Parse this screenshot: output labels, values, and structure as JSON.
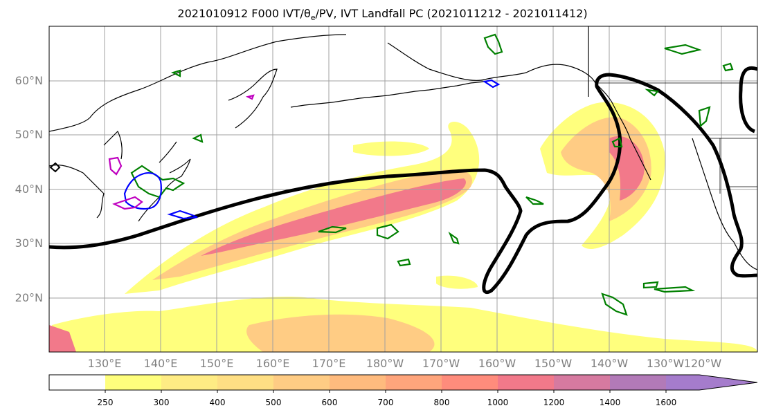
{
  "title": {
    "prefix": "2021010912 F000 IVT/",
    "theta": "θ",
    "sub_e": "e",
    "suffix": "/PV, IVT Landfall PC (2021011212 - 2021011412)"
  },
  "lat_labels": [
    "60°N",
    "50°N",
    "40°N",
    "30°N",
    "20°N"
  ],
  "lon_labels": [
    "130°E",
    "140°E",
    "150°E",
    "160°E",
    "170°E",
    "180°W",
    "170°W",
    "160°W",
    "150°W",
    "140°W",
    "130°W",
    "120°W"
  ],
  "colorbar": {
    "ticks": [
      "250",
      "300",
      "400",
      "500",
      "600",
      "700",
      "800",
      "1000",
      "1200",
      "1400",
      "1600"
    ],
    "colors": [
      "#ffffff",
      "#ffff7d",
      "#ffec84",
      "#ffdf84",
      "#ffcc84",
      "#ffbb7e",
      "#ffa57c",
      "#ff8c7c",
      "#f2798a",
      "#d67aa0",
      "#b27ab8",
      "#a57ccc"
    ]
  },
  "styles": {
    "ivt_low": "#ffff7d",
    "ivt_mid": "#ffcc84",
    "ivt_high": "#f2798a",
    "pc_contour": "#000000",
    "pv_green": "#008000",
    "blue": "#0000ff",
    "magenta": "#bf00bf"
  }
}
